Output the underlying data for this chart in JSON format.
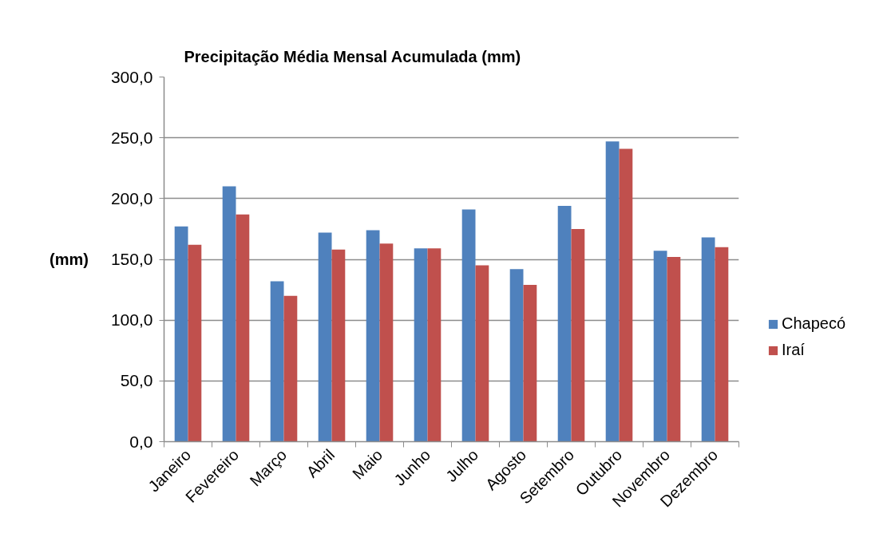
{
  "chart_data": {
    "type": "bar",
    "title": "Precipitação Média Mensal Acumulada (mm)",
    "ylabel": "(mm)",
    "categories": [
      "Janeiro",
      "Fevereiro",
      "Março",
      "Abril",
      "Maio",
      "Junho",
      "Julho",
      "Agosto",
      "Setembro",
      "Outubro",
      "Novembro",
      "Dezembro"
    ],
    "series": [
      {
        "name": "Chapecó",
        "color": "#4f81bd",
        "values": [
          177,
          210,
          132,
          172,
          174,
          159,
          191,
          142,
          194,
          247,
          157,
          168
        ]
      },
      {
        "name": "Iraí",
        "color": "#c0504d",
        "values": [
          162,
          187,
          120,
          158,
          163,
          159,
          145,
          129,
          175,
          241,
          152,
          160
        ]
      }
    ],
    "ylim": [
      0,
      300
    ],
    "yticks": [
      {
        "value": 0,
        "label": "0,0"
      },
      {
        "value": 50,
        "label": "50,0"
      },
      {
        "value": 100,
        "label": "100,0"
      },
      {
        "value": 150,
        "label": "150,0"
      },
      {
        "value": 200,
        "label": "200,0"
      },
      {
        "value": 250,
        "label": "250,0"
      },
      {
        "value": 300,
        "label": "300,0"
      }
    ],
    "grid": "y",
    "legend": "right"
  }
}
